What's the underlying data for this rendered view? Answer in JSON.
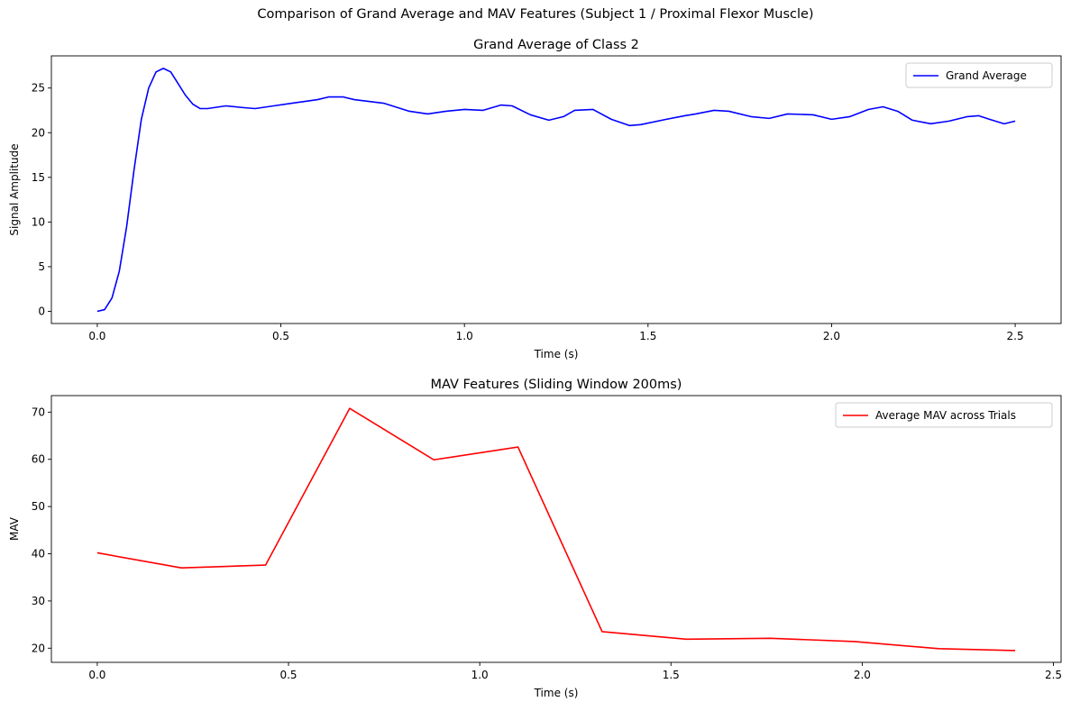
{
  "figure_title": "Comparison of Grand Average and MAV Features (Subject 1 / Proximal Flexor Muscle)",
  "chart_data": [
    {
      "type": "line",
      "title": "Grand Average of Class 2",
      "xlabel": "Time (s)",
      "ylabel": "Signal Amplitude",
      "xlim": [
        -0.125,
        2.625
      ],
      "ylim": [
        -1.36,
        28.6
      ],
      "xticks": [
        0.0,
        0.5,
        1.0,
        1.5,
        2.0,
        2.5
      ],
      "xtick_labels": [
        "0.0",
        "0.5",
        "1.0",
        "1.5",
        "2.0",
        "2.5"
      ],
      "yticks": [
        0,
        5,
        10,
        15,
        20,
        25
      ],
      "ytick_labels": [
        "0",
        "5",
        "10",
        "15",
        "20",
        "25"
      ],
      "grid": false,
      "legend_position": "top-right",
      "series": [
        {
          "name": "Grand Average",
          "color": "#0000ff",
          "x": [
            0.0,
            0.02,
            0.04,
            0.06,
            0.08,
            0.1,
            0.12,
            0.14,
            0.16,
            0.18,
            0.2,
            0.22,
            0.24,
            0.26,
            0.28,
            0.3,
            0.35,
            0.4,
            0.43,
            0.48,
            0.53,
            0.6,
            0.63,
            0.67,
            0.7,
            0.78,
            0.85,
            0.9,
            0.95,
            1.0,
            1.05,
            1.1,
            1.13,
            1.18,
            1.23,
            1.27,
            1.3,
            1.35,
            1.4,
            1.45,
            1.48,
            1.55,
            1.6,
            1.63,
            1.68,
            1.72,
            1.78,
            1.83,
            1.88,
            1.95,
            2.0,
            2.05,
            2.1,
            2.14,
            2.18,
            2.22,
            2.27,
            2.32,
            2.37,
            2.4,
            2.43,
            2.47,
            2.5
          ],
          "y": [
            0.0,
            0.2,
            1.5,
            4.5,
            9.5,
            15.8,
            21.5,
            25.0,
            26.8,
            27.2,
            26.8,
            25.5,
            24.2,
            23.2,
            22.7,
            22.7,
            23.0,
            22.8,
            22.7,
            23.0,
            23.3,
            23.7,
            24.0,
            24.0,
            23.7,
            23.3,
            22.4,
            22.1,
            22.4,
            22.6,
            22.5,
            23.1,
            23.0,
            22.0,
            21.4,
            21.8,
            22.5,
            22.6,
            21.5,
            20.8,
            20.9,
            21.5,
            21.9,
            22.1,
            22.5,
            22.4,
            21.8,
            21.6,
            22.1,
            22.0,
            21.5,
            21.8,
            22.6,
            22.9,
            22.4,
            21.4,
            21.0,
            21.3,
            21.8,
            21.9,
            21.5,
            21.0,
            21.3
          ]
        }
      ]
    },
    {
      "type": "line",
      "title": "MAV Features (Sliding Window 200ms)",
      "xlabel": "Time (s)",
      "ylabel": "MAV",
      "xlim": [
        -0.12,
        2.52
      ],
      "ylim": [
        17.0,
        73.5
      ],
      "xticks": [
        0.0,
        0.5,
        1.0,
        1.5,
        2.0,
        2.5
      ],
      "xtick_labels": [
        "0.0",
        "0.5",
        "1.0",
        "1.5",
        "2.0",
        "2.5"
      ],
      "yticks": [
        20,
        30,
        40,
        50,
        60,
        70
      ],
      "ytick_labels": [
        "20",
        "30",
        "40",
        "50",
        "60",
        "70"
      ],
      "grid": false,
      "legend_position": "top-right",
      "series": [
        {
          "name": "Average MAV across Trials",
          "color": "#ff0000",
          "x": [
            0.0,
            0.22,
            0.44,
            0.66,
            0.88,
            1.1,
            1.32,
            1.54,
            1.76,
            1.98,
            2.2,
            2.4
          ],
          "y": [
            40.2,
            37.0,
            37.6,
            70.8,
            59.9,
            62.6,
            23.5,
            21.9,
            22.1,
            21.4,
            19.9,
            19.5
          ]
        }
      ]
    }
  ]
}
